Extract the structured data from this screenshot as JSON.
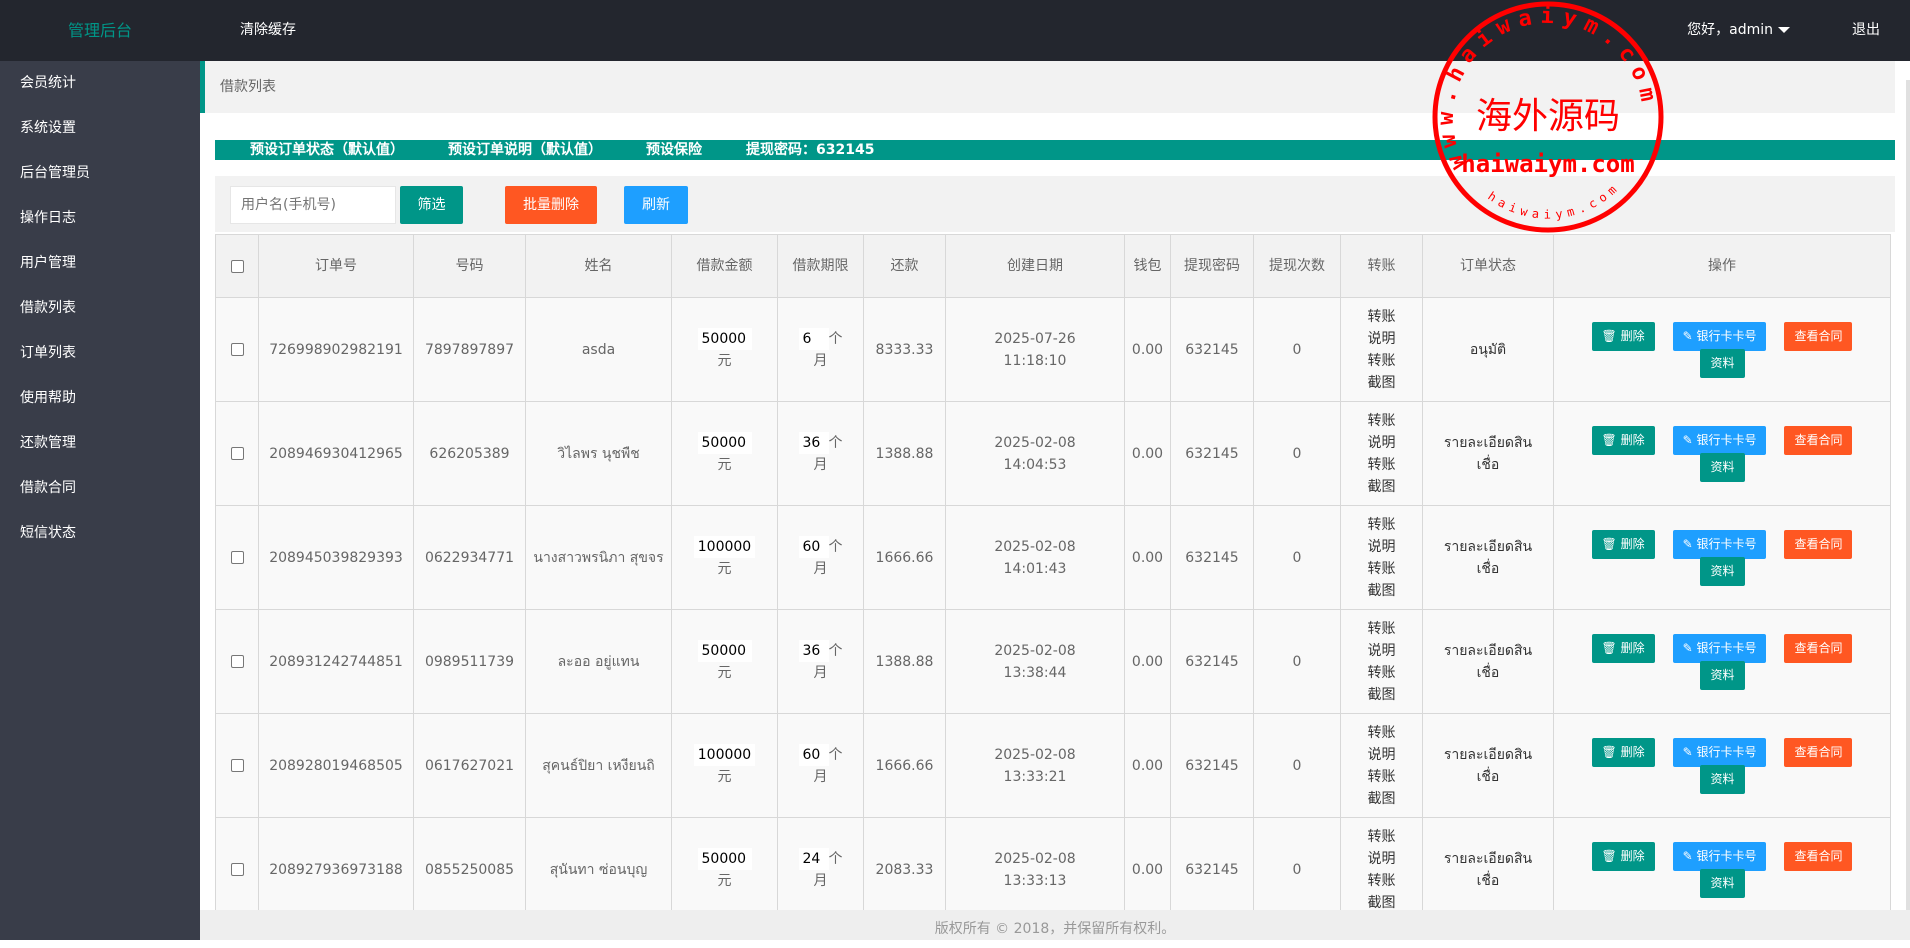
{
  "header": {
    "logo": "管理后台",
    "clear_cache": "清除缓存",
    "greeting": "您好，admin",
    "logout": "退出"
  },
  "sidebar": {
    "items": [
      "会员统计",
      "系统设置",
      "后台管理员",
      "操作日志",
      "用户管理",
      "借款列表",
      "订单列表",
      "使用帮助",
      "还款管理",
      "借款合同",
      "短信状态"
    ]
  },
  "breadcrumb": "借款列表",
  "presets": [
    "预设订单状态（默认值）",
    "预设订单说明（默认值）",
    "预设保险",
    "提现密码：632145"
  ],
  "toolbar": {
    "search_placeholder": "用户名(手机号)",
    "filter": "筛选",
    "batch_delete": "批量删除",
    "refresh": "刷新"
  },
  "table": {
    "headers": [
      "订单号",
      "号码",
      "姓名",
      "借款金额",
      "借款期限",
      "还款",
      "创建日期",
      "钱包",
      "提现密码",
      "提现次数",
      "转账",
      "订单状态",
      "操作"
    ],
    "amount_unit": "元",
    "term_unit_a": "个",
    "term_unit_b": "月",
    "transfer_desc": "转账说明",
    "transfer_shot": "转账截图",
    "actions": {
      "delete": "删除",
      "bank": "银行卡卡号",
      "contract": "查看合同",
      "info": "资料"
    },
    "rows": [
      {
        "order": "726998902982191",
        "phone": "7897897897",
        "name": "asda",
        "amount": "50000",
        "term": "6",
        "repay": "8333.33",
        "date": "2025-07-26",
        "time": "11:18:10",
        "wallet": "0.00",
        "pwd": "632145",
        "count": "0",
        "status": "อนุมัติ"
      },
      {
        "order": "208946930412965",
        "phone": "626205389",
        "name": "วิไลพร นุชพืช",
        "amount": "50000",
        "term": "36",
        "repay": "1388.88",
        "date": "2025-02-08",
        "time": "14:04:53",
        "wallet": "0.00",
        "pwd": "632145",
        "count": "0",
        "status": "รายละเอียดสินเชื่อ"
      },
      {
        "order": "208945039829393",
        "phone": "0622934771",
        "name": "นางสาวพรนิภา สุขจร",
        "amount": "100000",
        "term": "60",
        "repay": "1666.66",
        "date": "2025-02-08",
        "time": "14:01:43",
        "wallet": "0.00",
        "pwd": "632145",
        "count": "0",
        "status": "รายละเอียดสินเชื่อ"
      },
      {
        "order": "208931242744851",
        "phone": "0989511739",
        "name": "ละออ อยู่แทน",
        "amount": "50000",
        "term": "36",
        "repay": "1388.88",
        "date": "2025-02-08",
        "time": "13:38:44",
        "wallet": "0.00",
        "pwd": "632145",
        "count": "0",
        "status": "รายละเอียดสินเชื่อ"
      },
      {
        "order": "208928019468505",
        "phone": "0617627021",
        "name": "สุคนธ์ปิยา เหงียนถิ",
        "amount": "100000",
        "term": "60",
        "repay": "1666.66",
        "date": "2025-02-08",
        "time": "13:33:21",
        "wallet": "0.00",
        "pwd": "632145",
        "count": "0",
        "status": "รายละเอียดสินเชื่อ"
      },
      {
        "order": "208927936973188",
        "phone": "0855250085",
        "name": "สุนันทา ซ่อนบุญ",
        "amount": "50000",
        "term": "24",
        "repay": "2083.33",
        "date": "2025-02-08",
        "time": "13:33:13",
        "wallet": "0.00",
        "pwd": "632145",
        "count": "0",
        "status": "รายละเอียดสินเชื่อ"
      }
    ]
  },
  "footer": "版权所有 © 2018，并保留所有权利。",
  "watermark": {
    "center": "海外源码",
    "outer": "www.haiwaiym.com",
    "mid": "haiwaiym.com",
    "inner": "haiwaiym.com",
    "color": "#ff0000"
  },
  "colors": {
    "accent": "#009688",
    "danger": "#ff5722",
    "info": "#1e9fff",
    "header": "#23262e",
    "sidebar": "#393d49"
  }
}
